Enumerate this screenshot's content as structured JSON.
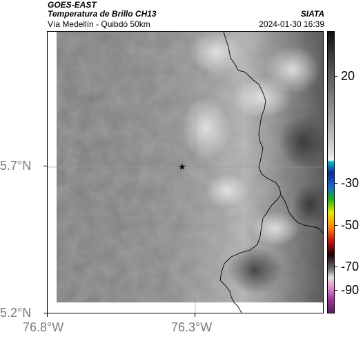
{
  "header": {
    "satellite": "GOES-EAST",
    "product": "Temperatura de Brillo CH13",
    "region": "Vía Medellín - Quibdó 50km",
    "agency": "SIATA",
    "timestamp": "2024-01-30 16:39"
  },
  "axes": {
    "lat_labels": [
      "5.7°N",
      "5.2°N"
    ],
    "lon_labels": [
      "76.8°W",
      "76.3°W"
    ]
  },
  "colorbar": {
    "labels": [
      "20",
      "-30",
      "-50",
      "-70",
      "-90"
    ]
  },
  "marker": {
    "symbol": "★"
  },
  "colors": {
    "coastline": "#000000",
    "gridline": "#9a9a9a",
    "cloud_dark": "#6b6b6b",
    "cloud_bright": "#d9d9d9"
  }
}
